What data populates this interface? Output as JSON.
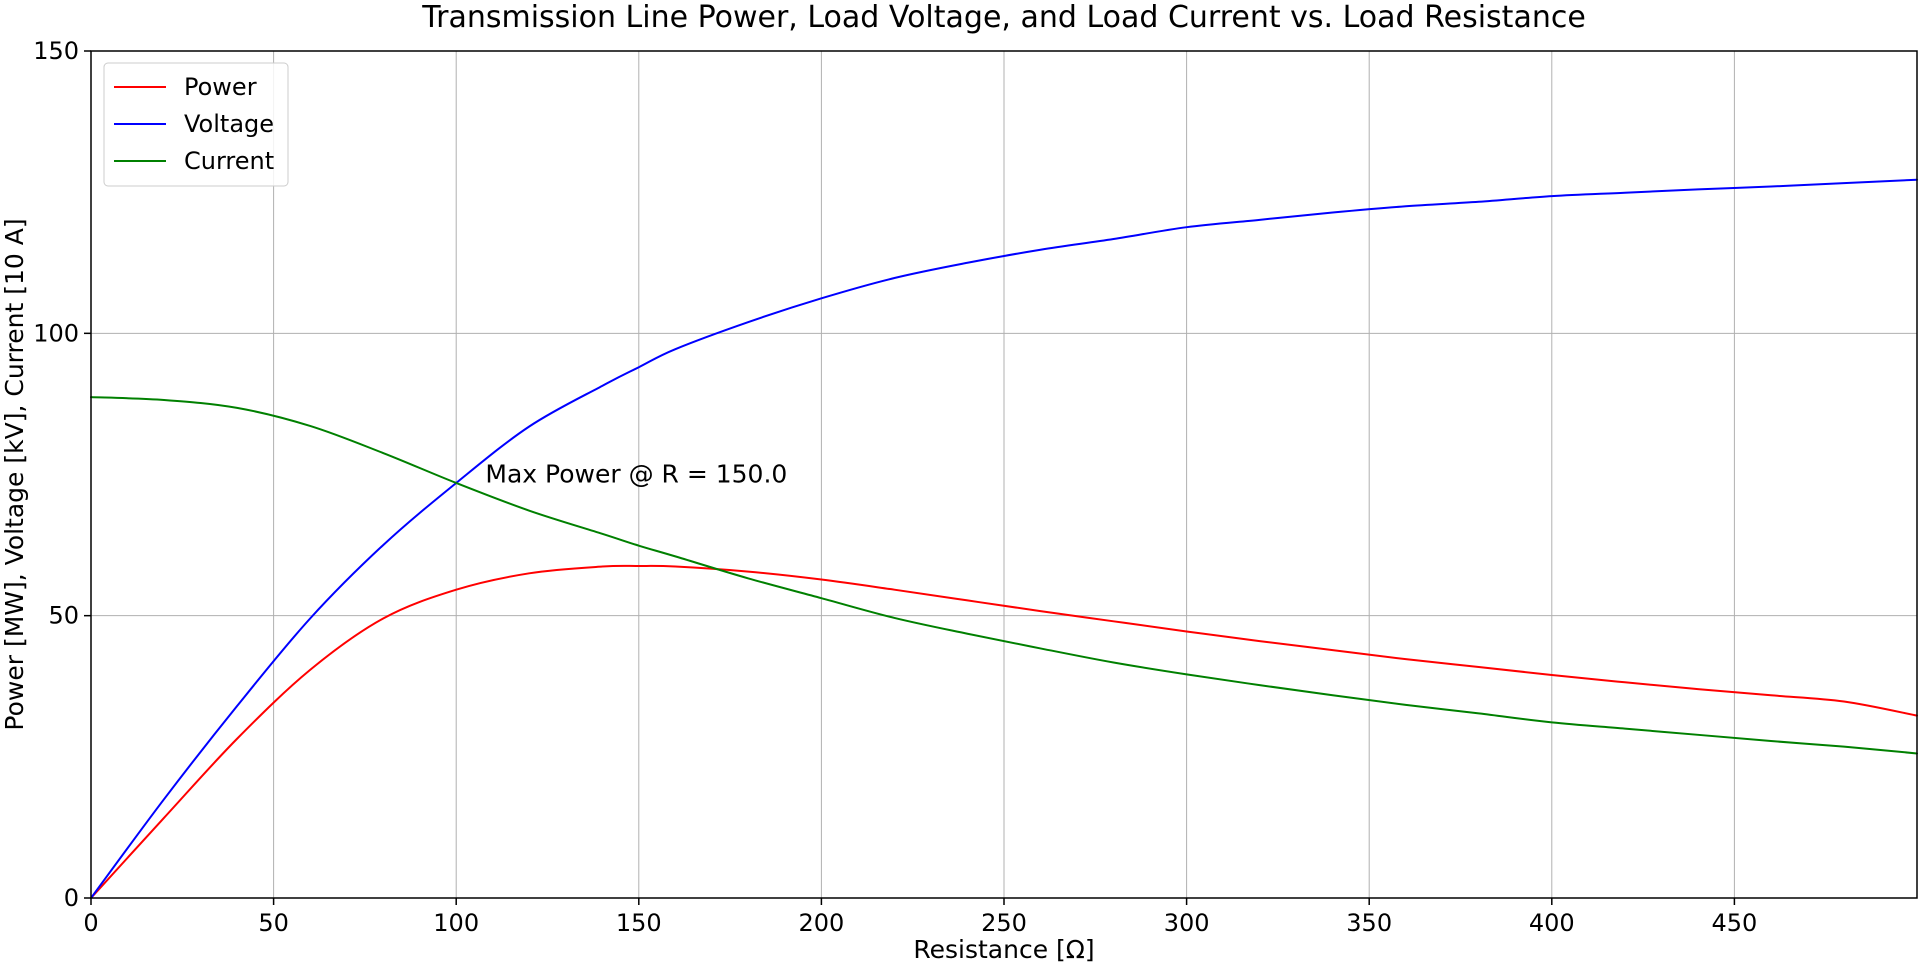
{
  "chart_data": {
    "type": "line",
    "title": "Transmission Line Power, Load Voltage, and Load Current vs. Load Resistance",
    "xlabel": "Resistance [Ω]",
    "ylabel": "Power [MW], Voltage [kV], Current [10 A]",
    "xlim": [
      0,
      500
    ],
    "ylim": [
      0,
      150
    ],
    "xticks": [
      0,
      50,
      100,
      150,
      200,
      250,
      300,
      350,
      400,
      450
    ],
    "yticks": [
      0,
      50,
      100,
      150
    ],
    "grid": true,
    "legend_position": "top-left",
    "x": [
      0,
      20,
      40,
      60,
      80,
      100,
      120,
      140,
      150,
      160,
      180,
      200,
      220,
      240,
      260,
      280,
      300,
      320,
      340,
      360,
      380,
      400,
      420,
      440,
      460,
      480,
      500
    ],
    "series": [
      {
        "name": "Power",
        "color": "#ff0000",
        "values": [
          0,
          14.2,
          28.2,
          40.4,
          49.5,
          54.6,
          57.5,
          58.7,
          58.8,
          58.7,
          57.8,
          56.4,
          54.6,
          52.7,
          50.8,
          49.0,
          47.2,
          45.5,
          43.9,
          42.3,
          40.9,
          39.5,
          38.2,
          37.0,
          35.9,
          34.8,
          32.3
        ]
      },
      {
        "name": "Voltage",
        "color": "#0000ff",
        "values": [
          0,
          17.5,
          34.0,
          49.5,
          62.5,
          73.5,
          83.5,
          90.7,
          94.0,
          97.2,
          102.0,
          106.2,
          109.8,
          112.5,
          114.8,
          116.7,
          118.8,
          120.1,
          121.4,
          122.5,
          123.3,
          124.3,
          124.9,
          125.5,
          126.0,
          126.6,
          127.2
        ]
      },
      {
        "name": "Current",
        "color": "#008000",
        "values": [
          88.7,
          88.2,
          86.8,
          83.6,
          78.8,
          73.5,
          68.6,
          64.5,
          62.4,
          60.5,
          56.6,
          53.1,
          49.6,
          46.8,
          44.2,
          41.7,
          39.6,
          37.7,
          35.9,
          34.2,
          32.7,
          31.1,
          30.0,
          28.9,
          27.8,
          26.8,
          25.6
        ]
      }
    ],
    "annotations": [
      {
        "text": "Max Power @ R = 150.0",
        "x": 108,
        "y": 75
      }
    ]
  }
}
